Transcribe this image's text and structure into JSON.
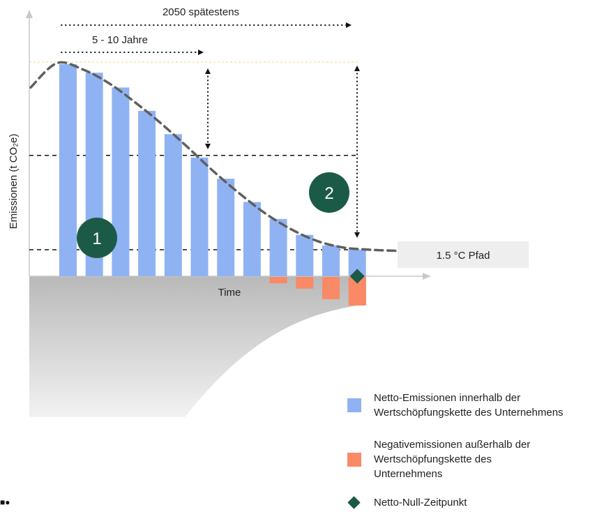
{
  "colors": {
    "net_emissions": "#8fb3f2",
    "negative_emissions": "#f98a65",
    "net_zero": "#1c5a48",
    "path_line": "#5f5f5f",
    "neg_area": "#d4d4d4",
    "label_box": "#eeeeee",
    "peak_line": "#f6e3a6",
    "axis": "#c8c8c8"
  },
  "chart_data": {
    "type": "bar",
    "title": "",
    "ylabel": "Emissionen (t CO₂e)",
    "xlabel": "Time",
    "ylim": [
      -3,
      12
    ],
    "series": [
      {
        "name": "Netto-Emissionen innerhalb der Wertschöpfungskette des Unternehmens",
        "values": [
          10,
          9.6,
          8.9,
          7.8,
          6.7,
          5.6,
          4.6,
          3.5,
          2.7,
          1.95,
          1.45,
          1.25
        ]
      },
      {
        "name": "Negativemissionen außerhalb der Wertschöpfungskette des Unternehmens",
        "values": [
          0,
          0,
          0,
          0,
          0,
          0,
          0,
          0,
          -0.3,
          -0.55,
          -1.05,
          -1.35
        ]
      }
    ],
    "net_zero_point": {
      "bar_index": 11,
      "value": 0
    },
    "pathway": {
      "label": "1.5 °C Pfad",
      "values": [
        8.9,
        10.05,
        9.75,
        9.1,
        8.2,
        7.2,
        6.1,
        4.95,
        3.9,
        2.95,
        2.2,
        1.65,
        1.35,
        1.25,
        1.2
      ]
    },
    "reference_levels": [
      5.7,
      1.25
    ],
    "annotations": {
      "long_term": "2050 spätestens",
      "short_term": "5 - 10 Jahre",
      "marker_1": "1",
      "marker_2": "2"
    }
  },
  "legend": {
    "net_emissions": "Netto-Emissionen innerhalb der\nWertschöpfungskette des Unternehmens",
    "negative_emissions": "Negativemissionen außerhalb der\nWertschöpfungskette des\nUnternehmens",
    "net_zero": "Netto-Null-Zeitpunkt"
  },
  "corner_mark": "■●"
}
